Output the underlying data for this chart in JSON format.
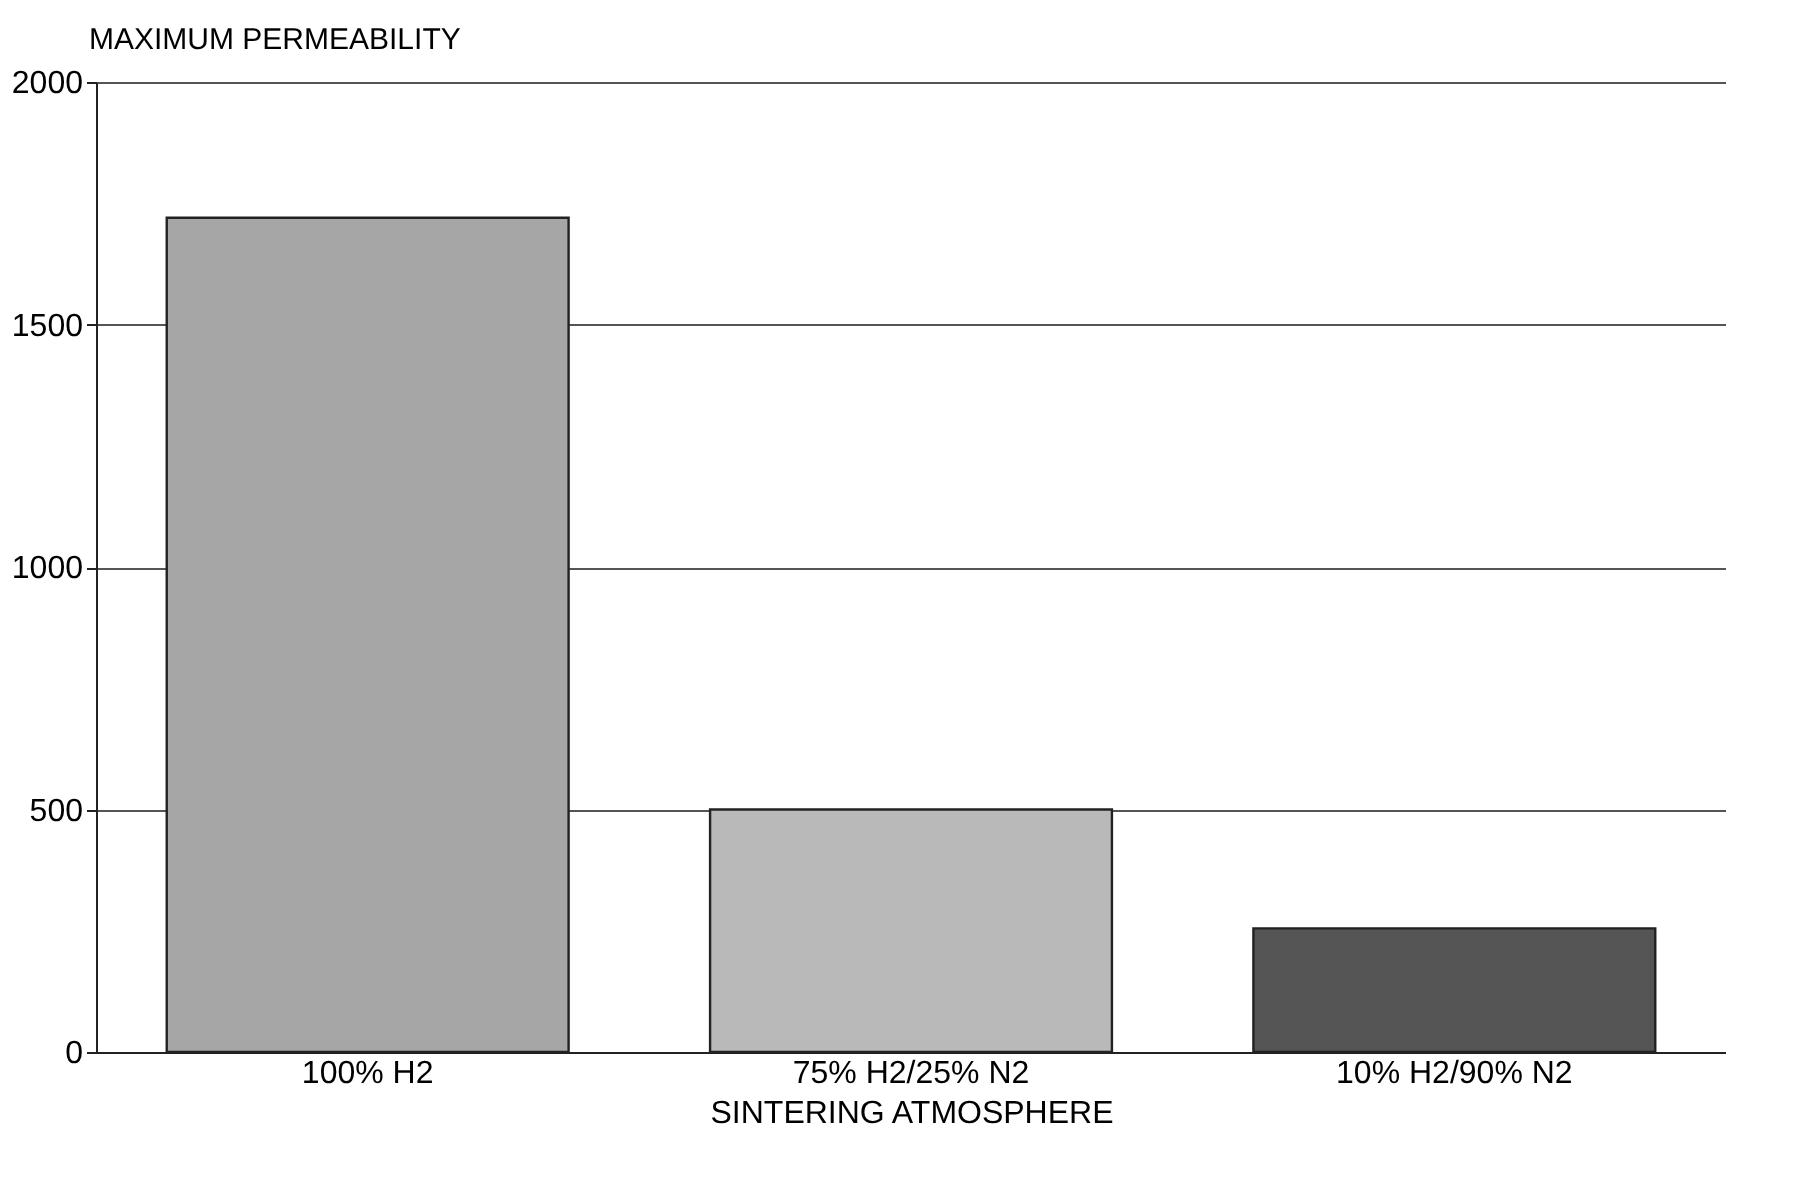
{
  "chart_data": {
    "type": "bar",
    "ylabel": "MAXIMUM PERMEABILITY",
    "xlabel": "SINTERING ATMOSPHERE",
    "categories": [
      "100% H2",
      "75% H2/25% N2",
      "10% H2/90% N2"
    ],
    "values": [
      1720,
      500,
      255
    ],
    "colors": [
      "#a6a6a6",
      "#b9b9b9",
      "#555555"
    ],
    "ylim": [
      0,
      2000
    ],
    "yticks": [
      0,
      500,
      1000,
      1500,
      2000
    ],
    "grid": "y"
  }
}
